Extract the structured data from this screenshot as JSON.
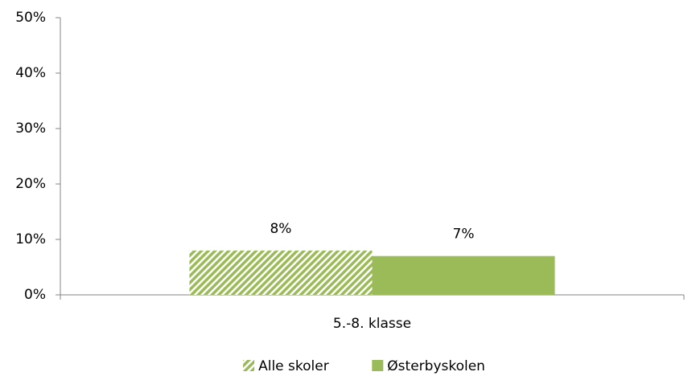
{
  "chart_data": {
    "type": "bar",
    "categories": [
      "5.-8. klasse"
    ],
    "series": [
      {
        "name": "Alle skoler",
        "color": "#9bbb59",
        "hatch": true,
        "values": [
          8
        ],
        "value_labels": [
          "8%"
        ]
      },
      {
        "name": "Østerbyskolen",
        "color": "#9bbb59",
        "hatch": false,
        "values": [
          7
        ],
        "value_labels": [
          "7%"
        ]
      }
    ],
    "ylim": [
      0,
      50
    ],
    "yticks": [
      {
        "value": 0,
        "label": "0%"
      },
      {
        "value": 10,
        "label": "10%"
      },
      {
        "value": 20,
        "label": "20%"
      },
      {
        "value": 30,
        "label": "30%"
      },
      {
        "value": 40,
        "label": "40%"
      },
      {
        "value": 50,
        "label": "50%"
      }
    ],
    "grid": false,
    "legend": "bottom"
  }
}
